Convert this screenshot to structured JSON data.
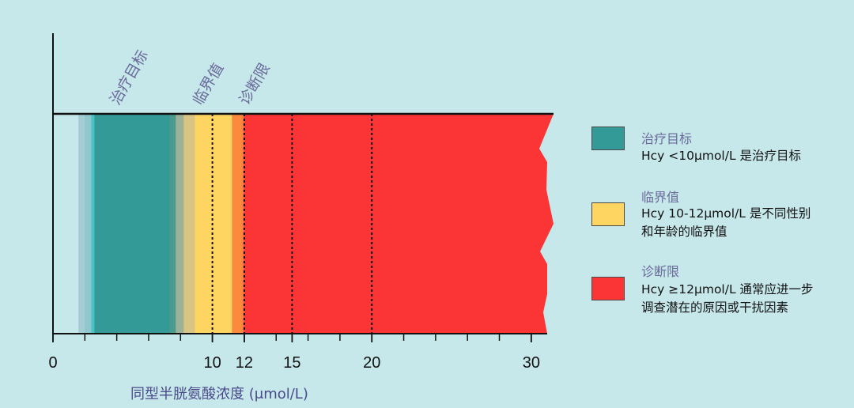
{
  "chart_data": {
    "type": "area",
    "xlabel": "同型半胱氨酸浓度 (μmol/L)",
    "ylabel": "",
    "xlim": [
      0,
      31
    ],
    "ticks": [
      {
        "value": 0,
        "label": "0"
      },
      {
        "value": 10,
        "label": "10"
      },
      {
        "value": 12,
        "label": "12"
      },
      {
        "value": 15,
        "label": "15"
      },
      {
        "value": 20,
        "label": "20"
      },
      {
        "value": 30,
        "label": "30"
      }
    ],
    "reference_lines": [
      10,
      12,
      15,
      20
    ],
    "zones": [
      {
        "name": "治疗目标",
        "from": 2.6,
        "to": 7.3,
        "color": "#339a97"
      },
      {
        "name": "临界值",
        "from": 8.9,
        "to": 11.2,
        "color": "#ffd562"
      },
      {
        "name": "诊断限",
        "from": 12,
        "to": 31,
        "color": "#fb3535"
      }
    ],
    "gradient_stops": [
      {
        "from": 1.6,
        "to": 2.0,
        "color": "#a4ccd5"
      },
      {
        "from": 2.0,
        "to": 2.4,
        "color": "#8fc7cc"
      },
      {
        "from": 2.4,
        "to": 2.6,
        "color": "#45c6c4"
      },
      {
        "from": 7.3,
        "to": 7.7,
        "color": "#4a9b8e"
      },
      {
        "from": 7.7,
        "to": 8.2,
        "color": "#9cb195"
      },
      {
        "from": 8.2,
        "to": 8.9,
        "color": "#d9c583"
      },
      {
        "from": 11.2,
        "to": 11.9,
        "color": "#fc8a3e"
      },
      {
        "from": 11.9,
        "to": 12.0,
        "color": "#fc6a3a"
      }
    ],
    "annotations": [
      {
        "text": "治疗目标",
        "x": 4.1
      },
      {
        "text": "临界值",
        "x": 9.3
      },
      {
        "text": "诊断限",
        "x": 12.2
      }
    ]
  },
  "legend": [
    {
      "title": "治疗目标",
      "color": "#339a97",
      "lines": [
        "Hcy <10μmol/L 是治疗目标"
      ]
    },
    {
      "title": "临界值",
      "color": "#ffd562",
      "lines": [
        "Hcy 10-12μmol/L 是不同性别",
        "和年龄的临界值"
      ]
    },
    {
      "title": "诊断限",
      "color": "#fb3535",
      "lines": [
        "Hcy ≥12μmol/L 通常应进一步",
        "调查潜在的原因或干扰因素"
      ]
    }
  ]
}
